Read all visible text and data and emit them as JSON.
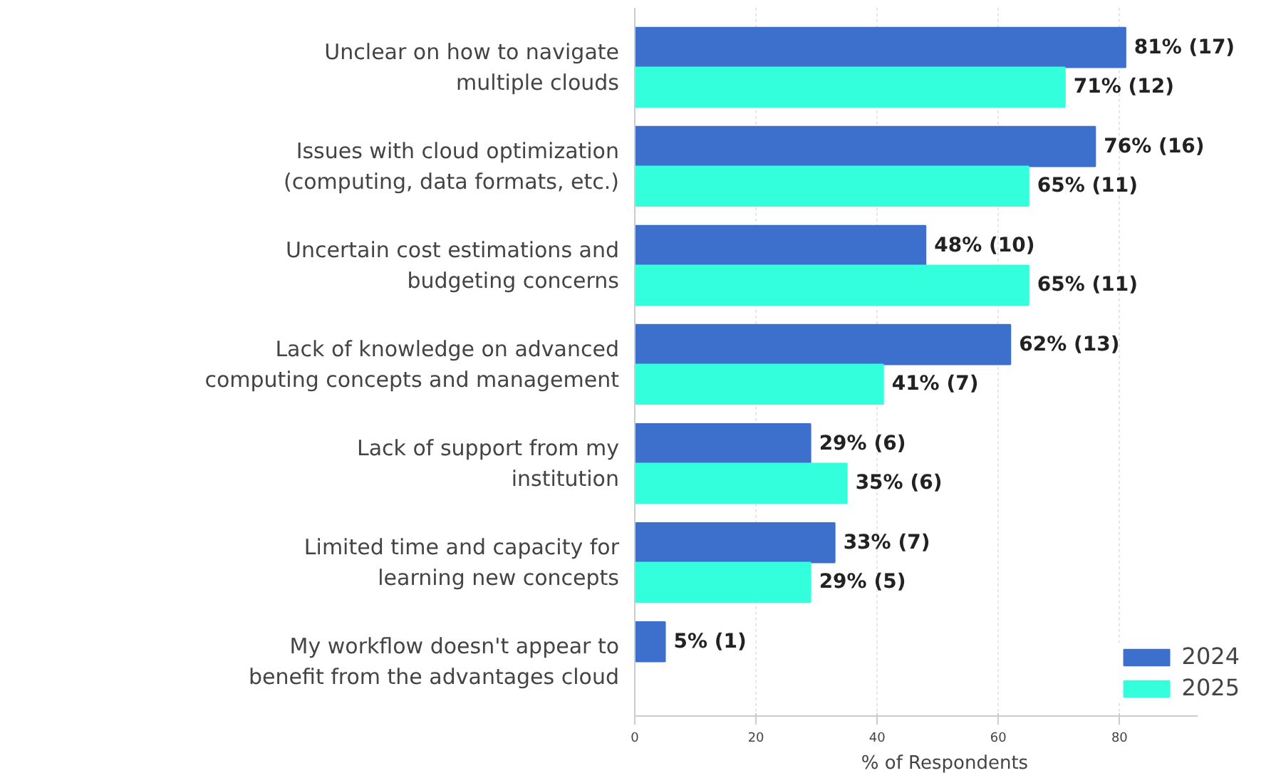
{
  "chart_data": {
    "type": "bar",
    "orientation": "horizontal",
    "xlabel": "% of Respondents",
    "categories": [
      "Unclear on how to navigate multiple clouds",
      "Issues with cloud optimization (computing, data formats, etc.)",
      "Uncertain cost estimations and budgeting concerns",
      "Lack of knowledge on advanced computing concepts and management",
      "Lack of support from my institution",
      "Limited time and capacity for learning new concepts",
      "My workflow doesn't appear to benefit from the advantages cloud"
    ],
    "series": [
      {
        "name": "2024",
        "color": "#3d6fcc",
        "values": [
          81,
          76,
          48,
          62,
          29,
          33,
          5
        ],
        "value_labels": [
          "81% (17)",
          "76% (16)",
          "48% (10)",
          "62% (13)",
          "29% (6)",
          "33% (7)",
          "5% (1)"
        ]
      },
      {
        "name": "2025",
        "color": "#33ffdd",
        "values": [
          71,
          65,
          65,
          41,
          35,
          29,
          null
        ],
        "value_labels": [
          "71% (12)",
          "65% (11)",
          "65% (11)",
          "41% (7)",
          "35% (6)",
          "29% (5)",
          null
        ]
      }
    ],
    "xlim": [
      0,
      93
    ],
    "xticks": [
      0,
      20,
      40,
      60,
      80
    ],
    "grid": "x",
    "legend": "bottom right"
  }
}
